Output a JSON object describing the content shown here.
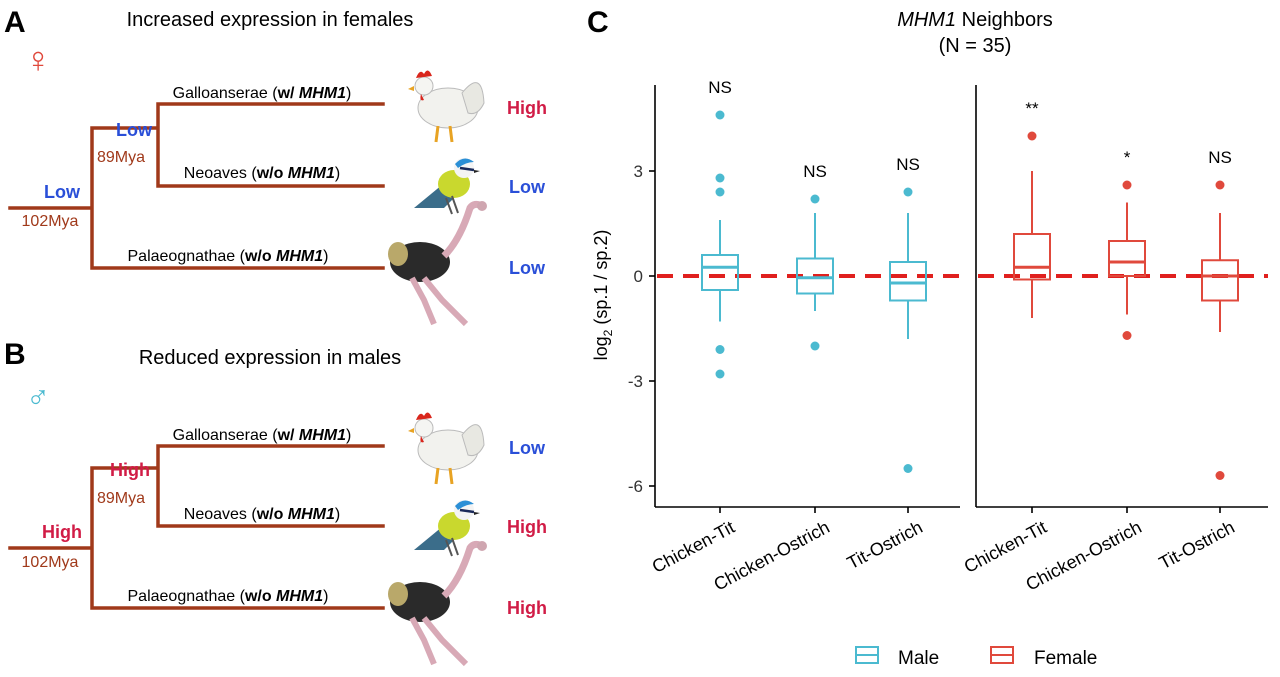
{
  "panels": {
    "A": {
      "letter": "A",
      "title": "Increased expression in females",
      "symbol": "♀"
    },
    "B": {
      "letter": "B",
      "title": "Reduced expression in males",
      "symbol": "♂"
    },
    "C": {
      "letter": "C",
      "title_italic": "MHM1",
      "title_rest": " Neighbors",
      "subtitle": "(N = 35)"
    }
  },
  "tree": {
    "node_root_label": "102Mya",
    "node_inner_label": "89Mya",
    "clades": [
      {
        "prefix": "Galloanserae (",
        "bold": "w/ ",
        "italic": "MHM1",
        "suffix": ")"
      },
      {
        "prefix": "Neoaves (",
        "bold": "w/o ",
        "italic": "MHM1",
        "suffix": ")"
      },
      {
        "prefix": "Palaeognathae (",
        "bold": "w/o ",
        "italic": "MHM1",
        "suffix": ")"
      }
    ],
    "female": {
      "root": "Low",
      "inner": "Low",
      "tips": [
        "High",
        "Low",
        "Low"
      ]
    },
    "male": {
      "root": "High",
      "inner": "High",
      "tips": [
        "Low",
        "High",
        "High"
      ]
    }
  },
  "colors": {
    "male": "#4bbad0",
    "female": "#e0493c",
    "tree": "#a0391a",
    "low": "#2a4fd8",
    "high": "#d11c46",
    "ref_line": "#e0201e"
  },
  "chart_data": {
    "type": "box",
    "ylabel": "log₂ (sp.1 / sp.2)",
    "ylim": [
      -6.6,
      5.5
    ],
    "yticks": [
      3,
      0,
      -3,
      -6
    ],
    "ytick_labels": [
      "3",
      "0",
      "-3",
      "-6"
    ],
    "reference_line_y": 0,
    "legend": [
      "Male",
      "Female"
    ],
    "groups": [
      {
        "sex": "Male",
        "category": "Chicken-Tit",
        "sig": "NS",
        "lower_whisker": -1.3,
        "q1": -0.4,
        "median": 0.25,
        "q3": 0.6,
        "upper_whisker": 1.6,
        "outliers": [
          4.6,
          2.8,
          2.4,
          -2.1,
          -2.8
        ]
      },
      {
        "sex": "Male",
        "category": "Chicken-Ostrich",
        "sig": "NS",
        "lower_whisker": -1.0,
        "q1": -0.5,
        "median": -0.05,
        "q3": 0.5,
        "upper_whisker": 1.8,
        "outliers": [
          2.2,
          -2.0
        ]
      },
      {
        "sex": "Male",
        "category": "Tit-Ostrich",
        "sig": "NS",
        "lower_whisker": -1.8,
        "q1": -0.7,
        "median": -0.2,
        "q3": 0.4,
        "upper_whisker": 1.8,
        "outliers": [
          2.4,
          -5.5
        ]
      },
      {
        "sex": "Female",
        "category": "Chicken-Tit",
        "sig": "**",
        "lower_whisker": -1.2,
        "q1": -0.1,
        "median": 0.25,
        "q3": 1.2,
        "upper_whisker": 3.0,
        "outliers": [
          4.0
        ]
      },
      {
        "sex": "Female",
        "category": "Chicken-Ostrich",
        "sig": "*",
        "lower_whisker": -1.1,
        "q1": 0.0,
        "median": 0.4,
        "q3": 1.0,
        "upper_whisker": 2.1,
        "outliers": [
          2.6,
          -1.7
        ]
      },
      {
        "sex": "Female",
        "category": "Tit-Ostrich",
        "sig": "NS",
        "lower_whisker": -1.6,
        "q1": -0.7,
        "median": 0.0,
        "q3": 0.45,
        "upper_whisker": 1.8,
        "outliers": [
          2.6,
          -5.7
        ]
      }
    ]
  }
}
